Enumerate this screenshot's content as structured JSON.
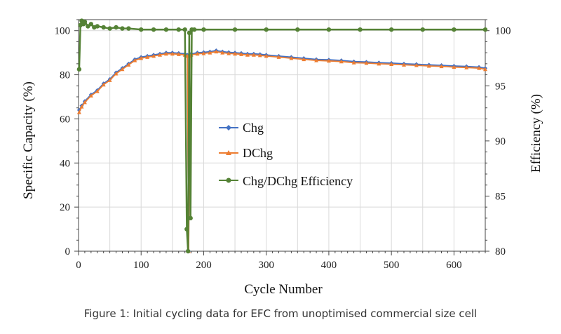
{
  "caption": "Figure 1: Initial cycling data for EFC from unoptimised commercial size cell",
  "colors": {
    "chg": "#4472C4",
    "dchg": "#ED7D31",
    "efficiency": "#548235",
    "grid": "#d9d9d9",
    "axis": "#444444"
  },
  "chart_data": {
    "type": "line",
    "xlabel": "Cycle Number",
    "ylabel": "Specific Capacity (%)",
    "y2label": "Efficiency (%)",
    "xlim": [
      0,
      650
    ],
    "ylim": [
      0,
      105
    ],
    "y2lim": [
      80,
      101
    ],
    "x_ticks": [
      0,
      100,
      200,
      300,
      400,
      500,
      600
    ],
    "y_ticks": [
      0,
      20,
      40,
      60,
      80,
      100
    ],
    "y2_ticks": [
      80,
      85,
      90,
      95,
      100
    ],
    "grid": true,
    "legend_position": "center",
    "series": [
      {
        "name": "Chg",
        "axis": "left",
        "marker": "diamond",
        "x": [
          1,
          5,
          10,
          20,
          30,
          40,
          50,
          60,
          70,
          80,
          90,
          100,
          110,
          120,
          130,
          140,
          150,
          160,
          170,
          174,
          176,
          178,
          180,
          190,
          200,
          210,
          220,
          230,
          240,
          250,
          260,
          270,
          280,
          290,
          300,
          320,
          340,
          360,
          380,
          400,
          420,
          440,
          460,
          480,
          500,
          520,
          540,
          560,
          580,
          600,
          620,
          640,
          650
        ],
        "values": [
          64,
          66,
          68,
          71,
          73,
          76,
          78,
          81,
          83,
          85,
          87,
          88,
          88.5,
          89,
          89.5,
          90,
          90,
          89.8,
          89.5,
          89,
          0,
          89,
          89.5,
          90,
          90.2,
          90.5,
          91,
          90.5,
          90.2,
          90,
          89.8,
          89.5,
          89.5,
          89.3,
          89,
          88.5,
          88,
          87.5,
          87,
          86.8,
          86.5,
          86,
          85.8,
          85.5,
          85.3,
          85,
          84.8,
          84.5,
          84.3,
          84,
          83.8,
          83.5,
          83
        ]
      },
      {
        "name": "DChg",
        "axis": "left",
        "marker": "triangle",
        "x": [
          1,
          5,
          10,
          20,
          30,
          40,
          50,
          60,
          70,
          80,
          90,
          100,
          110,
          120,
          130,
          140,
          150,
          160,
          170,
          174,
          176,
          178,
          180,
          190,
          200,
          210,
          220,
          230,
          240,
          250,
          260,
          270,
          280,
          290,
          300,
          320,
          340,
          360,
          380,
          400,
          420,
          440,
          460,
          480,
          500,
          520,
          540,
          560,
          580,
          600,
          620,
          640,
          650
        ],
        "values": [
          63,
          65.5,
          67.5,
          70.5,
          72.5,
          75.5,
          77.5,
          80.5,
          82.5,
          84.5,
          86.5,
          87.5,
          88,
          88.5,
          89,
          89.5,
          89.5,
          89.3,
          89,
          88.5,
          0,
          88.5,
          89,
          89.5,
          89.7,
          90,
          90.5,
          90,
          89.7,
          89.5,
          89.3,
          89,
          89,
          88.8,
          88.5,
          88,
          87.5,
          87,
          86.5,
          86.3,
          86,
          85.5,
          85.3,
          85,
          84.8,
          84.5,
          84.3,
          84,
          83.8,
          83.5,
          83.3,
          83,
          82.5
        ]
      },
      {
        "name": "Chg/DChg Efficiency",
        "axis": "right",
        "marker": "circle",
        "x": [
          1,
          3,
          5,
          8,
          10,
          15,
          20,
          25,
          30,
          40,
          50,
          60,
          70,
          80,
          100,
          120,
          140,
          160,
          170,
          173,
          175,
          177,
          179,
          181,
          185,
          200,
          250,
          300,
          350,
          400,
          450,
          500,
          550,
          600,
          650
        ],
        "values": [
          96.5,
          100.5,
          100.9,
          100.6,
          100.8,
          100.4,
          100.6,
          100.3,
          100.4,
          100.3,
          100.2,
          100.3,
          100.2,
          100.2,
          100.1,
          100.1,
          100.1,
          100.1,
          100.1,
          82,
          80,
          99.8,
          83,
          100.1,
          100.1,
          100.1,
          100.1,
          100.1,
          100.1,
          100.1,
          100.1,
          100.1,
          100.1,
          100.1,
          100.1
        ]
      }
    ]
  }
}
